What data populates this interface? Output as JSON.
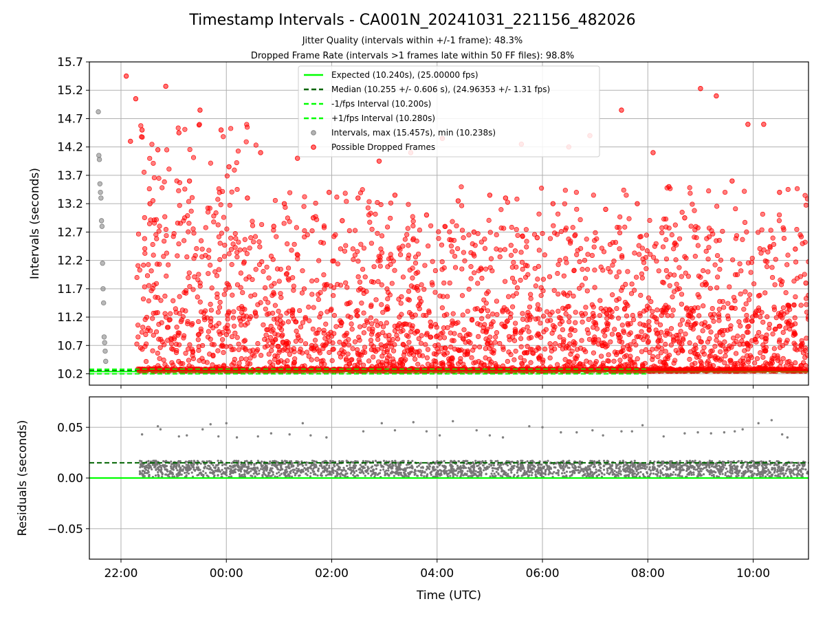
{
  "chart_data": [
    {
      "type": "scatter",
      "title": "Timestamp Intervals - CA001N_20241031_221156_482026",
      "subtitle_lines": [
        "Jitter Quality (intervals within +/-1 frame): 48.3%",
        "Dropped Frame Rate (intervals >1 frames late within 50 FF files): 98.8%"
      ],
      "ylabel": "Intervals (seconds)",
      "x_range_hours": [
        21.4,
        35.05
      ],
      "ylim": [
        10.0,
        15.7
      ],
      "yticks": [
        10.2,
        10.7,
        11.2,
        11.7,
        12.2,
        12.7,
        13.2,
        13.7,
        14.2,
        14.7,
        15.2,
        15.7
      ],
      "ytick_labels": [
        "10.2",
        "10.7",
        "11.2",
        "11.7",
        "12.2",
        "12.7",
        "13.2",
        "13.7",
        "14.2",
        "14.7",
        "15.2",
        "15.7"
      ],
      "xticks_hours": [
        22,
        24,
        26,
        28,
        30,
        32,
        34
      ],
      "grid": true,
      "legend_position": "top-center",
      "legend": [
        {
          "label": "Expected (10.240s), (25.00000 fps)",
          "style": "solid",
          "color": "#00ff00"
        },
        {
          "label": "Median (10.255 +/- 0.606 s), (24.96353 +/- 1.31 fps)",
          "style": "dashed",
          "color": "#006400"
        },
        {
          "label": "-1/fps Interval (10.200s)",
          "style": "dashed",
          "color": "#00ff00"
        },
        {
          "label": "+1/fps Interval (10.280s)",
          "style": "dashed",
          "color": "#00ff00"
        },
        {
          "label": "Intervals, max (15.457s), min (10.238s)",
          "style": "marker",
          "color": "#808080"
        },
        {
          "label": "Possible Dropped Frames",
          "style": "marker",
          "color": "#ff0000"
        }
      ],
      "lines": {
        "expected": 10.24,
        "median": 10.255,
        "minus_1fps": 10.2,
        "plus_1fps": 10.28
      },
      "series": [
        {
          "name": "Intervals, max (15.457s), min (10.238s)",
          "color": "#808080",
          "x": [
            21.57,
            21.58,
            21.59,
            21.6,
            21.61,
            21.62,
            21.63,
            21.64,
            21.65,
            21.66,
            21.67,
            21.68,
            21.69,
            21.7,
            21.71
          ],
          "y": [
            14.82,
            14.05,
            13.98,
            13.55,
            13.4,
            13.3,
            12.9,
            12.8,
            12.15,
            11.7,
            11.45,
            10.85,
            10.75,
            10.6,
            10.42
          ]
        },
        {
          "name": "Possible Dropped Frames",
          "color": "#ff0000",
          "x": [
            22.1,
            22.18,
            22.28,
            22.4,
            22.55,
            22.7,
            22.85,
            23.1,
            23.3,
            23.5,
            23.9,
            24.05,
            24.4,
            24.65,
            24.9,
            25.1,
            25.35,
            25.65,
            25.95,
            26.2,
            26.5,
            26.9,
            27.2,
            27.5,
            27.8,
            28.1,
            28.4,
            28.7,
            29.0,
            29.3,
            29.6,
            29.9,
            30.2,
            30.5,
            30.9,
            31.2,
            31.5,
            31.8,
            32.1,
            32.4,
            32.7,
            33.0,
            33.3,
            33.6,
            33.9,
            34.2,
            34.5,
            34.8,
            35.0
          ],
          "y": [
            15.45,
            14.3,
            15.05,
            14.5,
            13.2,
            14.15,
            15.27,
            14.45,
            13.6,
            14.85,
            14.5,
            13.85,
            13.3,
            14.1,
            12.8,
            13.2,
            14.0,
            12.95,
            13.4,
            12.9,
            13.3,
            13.95,
            13.35,
            14.1,
            13.0,
            14.35,
            13.25,
            12.7,
            13.35,
            13.3,
            14.25,
            12.6,
            13.2,
            14.2,
            14.4,
            13.1,
            14.85,
            13.2,
            14.1,
            13.5,
            12.95,
            15.23,
            15.1,
            13.6,
            14.6,
            14.6,
            13.4,
            12.4,
            11.8
          ]
        },
        {
          "name": "Expected (10.240s), (25.00000 fps)",
          "color": "#00ff00",
          "x": [
            21.4,
            35.05
          ],
          "y": [
            10.24,
            10.24
          ]
        }
      ]
    },
    {
      "type": "scatter",
      "ylabel": "Residuals (seconds)",
      "xlabel": "Time (UTC)",
      "x_range_hours": [
        21.4,
        35.05
      ],
      "ylim": [
        -0.08,
        0.08
      ],
      "yticks": [
        -0.05,
        0.0,
        0.05
      ],
      "ytick_labels": [
        "−0.05",
        "0.00",
        "0.05"
      ],
      "xtick_labels": [
        "22:00",
        "00:00",
        "02:00",
        "04:00",
        "06:00",
        "08:00",
        "10:00"
      ],
      "xticks_hours": [
        22,
        24,
        26,
        28,
        30,
        32,
        34
      ],
      "grid": true,
      "lines": {
        "zero": 0.0,
        "median_residual": 0.015
      },
      "series": [
        {
          "name": "Residuals",
          "color": "#808080",
          "x": [
            22.4,
            22.7,
            22.75,
            23.1,
            23.25,
            23.55,
            23.7,
            23.85,
            24.0,
            24.2,
            24.6,
            24.85,
            25.2,
            25.45,
            25.6,
            25.9,
            26.6,
            26.95,
            27.2,
            27.55,
            27.8,
            28.05,
            28.3,
            28.75,
            29.0,
            29.25,
            29.75,
            30.0,
            30.35,
            30.65,
            30.95,
            31.15,
            31.5,
            31.7,
            31.9,
            32.3,
            32.7,
            32.95,
            33.2,
            33.45,
            33.65,
            33.8,
            34.1,
            34.35,
            34.55,
            34.65
          ],
          "y": [
            0.043,
            0.051,
            0.048,
            0.041,
            0.042,
            0.048,
            0.053,
            0.041,
            0.054,
            0.04,
            0.041,
            0.044,
            0.043,
            0.054,
            0.042,
            0.04,
            0.046,
            0.054,
            0.047,
            0.055,
            0.046,
            0.042,
            0.056,
            0.047,
            0.042,
            0.04,
            0.051,
            0.05,
            0.045,
            0.045,
            0.047,
            0.042,
            0.046,
            0.046,
            0.052,
            0.041,
            0.044,
            0.045,
            0.044,
            0.045,
            0.046,
            0.048,
            0.054,
            0.057,
            0.043,
            0.04
          ]
        }
      ]
    }
  ]
}
